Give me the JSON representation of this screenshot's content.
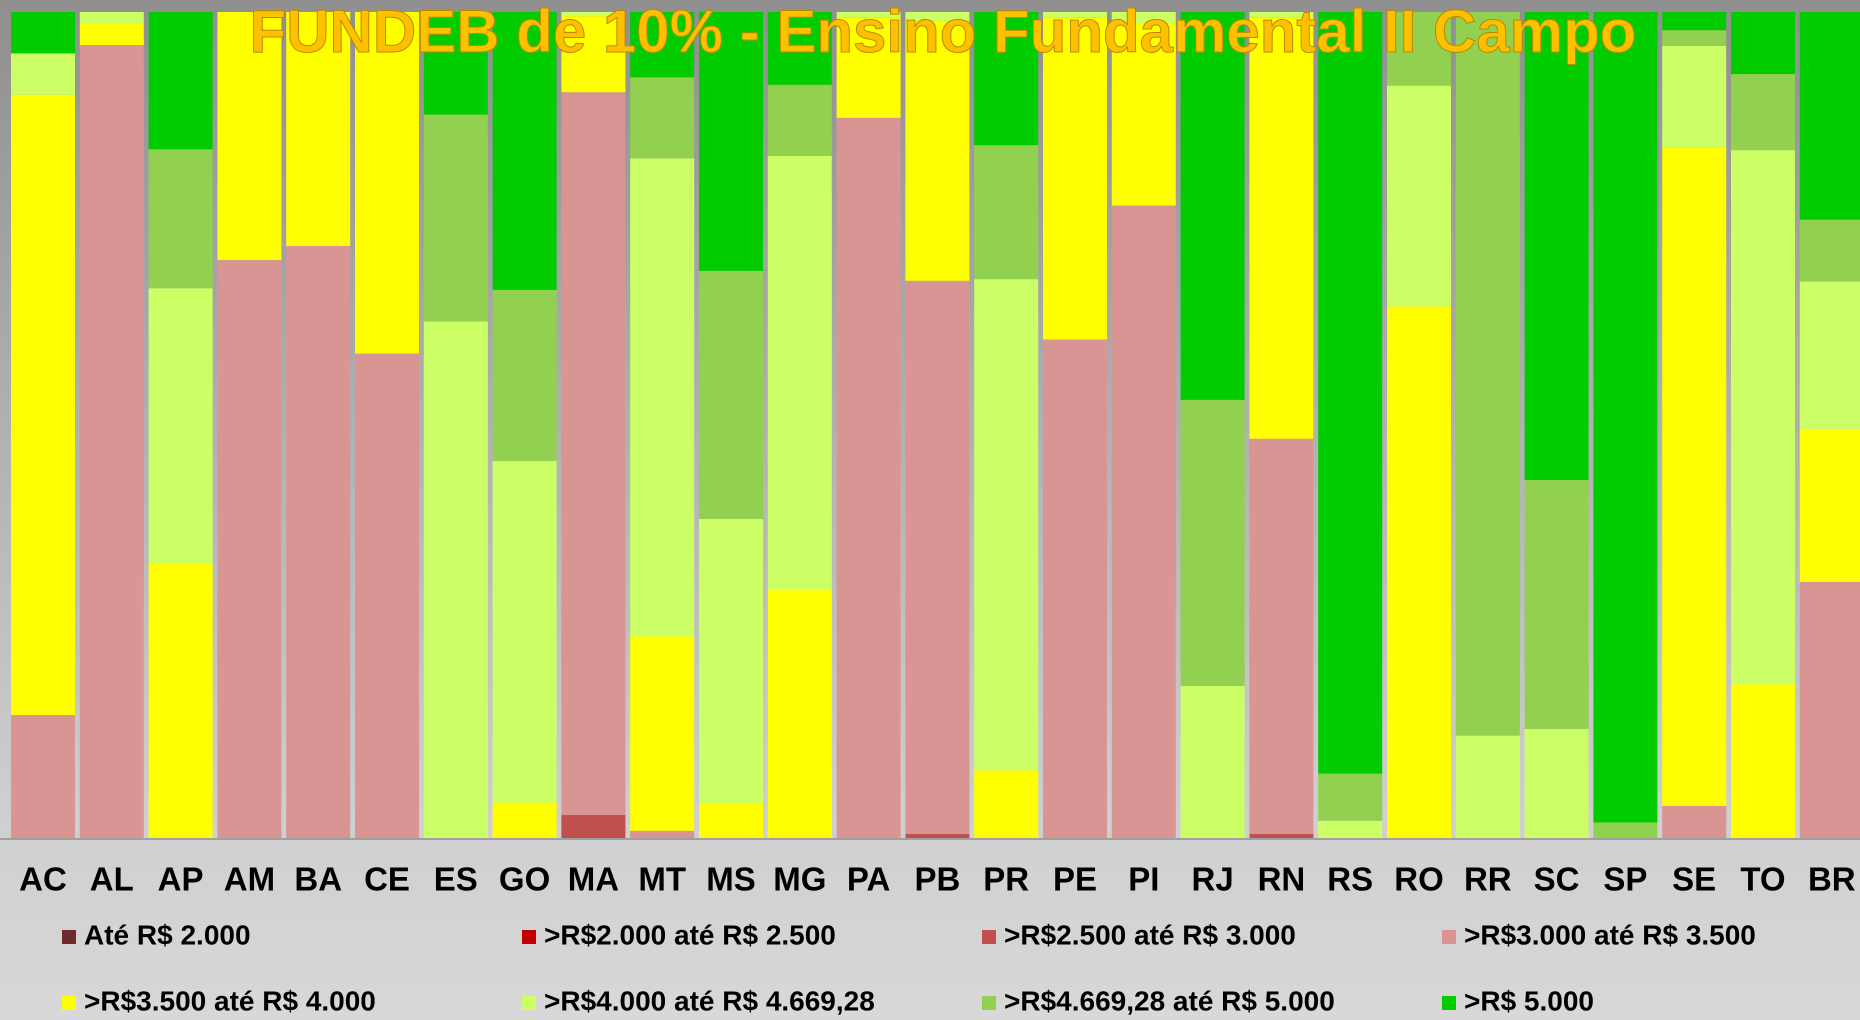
{
  "chart_data": {
    "type": "bar",
    "stacked": true,
    "title": "FUNDEB de 10% - Ensino Fundamental II Campo",
    "categories": [
      "AC",
      "AL",
      "AP",
      "AM",
      "BA",
      "CE",
      "ES",
      "GO",
      "MA",
      "MT",
      "MS",
      "MG",
      "PA",
      "PB",
      "PR",
      "PE",
      "PI",
      "RJ",
      "RN",
      "RS",
      "RO",
      "RR",
      "SC",
      "SP",
      "SE",
      "TO",
      "BR"
    ],
    "ylim": [
      0,
      100
    ],
    "series": [
      {
        "name": "Até R$ 2.000",
        "color": "#6e2b2b",
        "values": [
          0,
          0,
          0,
          0,
          0,
          0,
          0,
          0,
          0,
          0,
          0,
          0,
          0,
          0,
          0,
          0,
          0,
          0,
          0,
          0,
          0,
          0,
          0,
          0,
          0,
          0,
          0
        ]
      },
      {
        "name": ">R$2.000 até R$ 2.500",
        "color": "#c00000",
        "values": [
          0,
          0,
          0,
          0,
          0,
          0,
          0,
          0,
          0,
          0,
          0,
          0,
          0,
          0,
          0,
          0,
          0,
          0,
          0,
          0,
          0,
          0,
          0,
          0,
          0,
          0,
          0
        ]
      },
      {
        "name": ">R$2.500 até R$ 3.000",
        "color": "#c0504d",
        "values": [
          0,
          0,
          0,
          0,
          0,
          0,
          0,
          0,
          2.9,
          0,
          0,
          0,
          0,
          0.6,
          0,
          0,
          0,
          0,
          0.6,
          0,
          0,
          0,
          0,
          0,
          0,
          0,
          0
        ]
      },
      {
        "name": ">R$3.000 até R$ 3.500",
        "color": "#d99594",
        "values": [
          15,
          96,
          0,
          70,
          71.7,
          58.7,
          0,
          0,
          87.4,
          1,
          0,
          0,
          87.2,
          66.9,
          0,
          60.4,
          76.6,
          0,
          47.8,
          0,
          0,
          0,
          0,
          0,
          4,
          0,
          31.1
        ]
      },
      {
        "name": ">R$3.500 até R$ 4.000",
        "color": "#ffff00",
        "values": [
          75,
          2.6,
          33.3,
          30,
          28.3,
          41.3,
          0,
          4.4,
          9.2,
          23.5,
          4.3,
          30.1,
          12.1,
          31.4,
          8.3,
          38.9,
          22,
          0,
          50.9,
          0,
          64.4,
          0,
          0,
          0,
          79.6,
          18.7,
          18.5
        ]
      },
      {
        "name": ">R$4.000 até R$ 4.669,28",
        "color": "#ccff66",
        "values": [
          5,
          1.4,
          33.3,
          0,
          0,
          0,
          62.6,
          41.3,
          0.5,
          57.8,
          34.4,
          52.5,
          0.7,
          1.1,
          59.4,
          0.7,
          1.4,
          18.5,
          0.7,
          2.2,
          26.7,
          12.5,
          13.3,
          0,
          12.3,
          64.6,
          17.8
        ]
      },
      {
        "name": ">R$4.669,28 até R$ 5.000",
        "color": "#92d050",
        "values": [
          0,
          0,
          16.8,
          0,
          0,
          0,
          25,
          20.7,
          0,
          9.8,
          30,
          8.6,
          0,
          0,
          16.2,
          0,
          0,
          34.6,
          0,
          5.7,
          8.9,
          87.5,
          30.1,
          2,
          1.9,
          9.2,
          7.5
        ]
      },
      {
        "name": ">R$ 5.000",
        "color": "#00cc00",
        "values": [
          5,
          0,
          16.6,
          0,
          0,
          0,
          12.4,
          33.6,
          0,
          7.9,
          31.3,
          8.8,
          0,
          0,
          16.1,
          0,
          0,
          46.9,
          0,
          92.1,
          0,
          0,
          56.6,
          98,
          2.2,
          7.5,
          25.1
        ]
      }
    ]
  }
}
